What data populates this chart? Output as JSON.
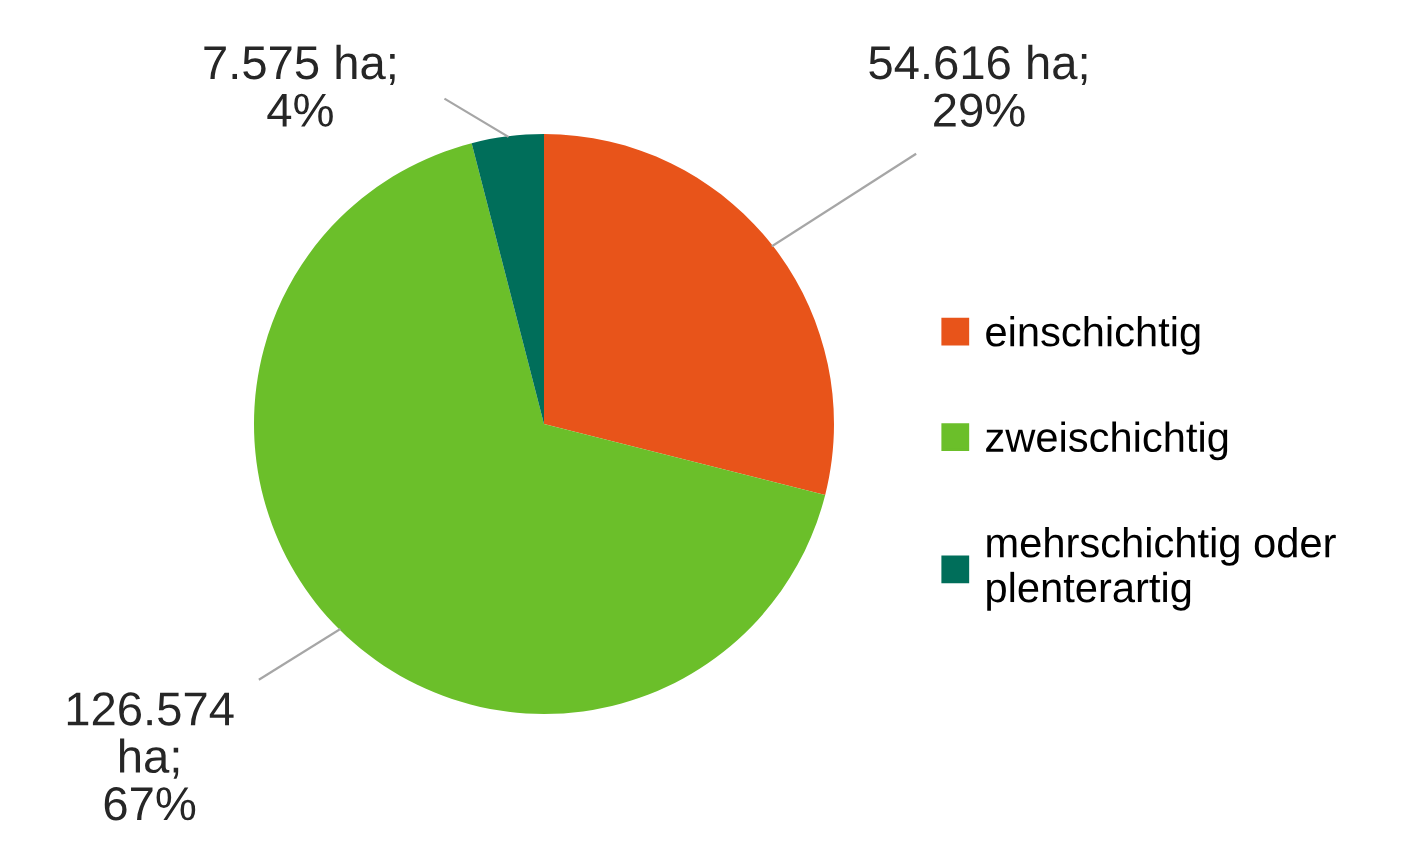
{
  "chart_data": {
    "type": "pie",
    "categories": [
      "einschichtig",
      "zweischichtig",
      "mehrschichtig oder\nplenterartig"
    ],
    "values": [
      54616,
      126574,
      7575
    ],
    "colors": [
      "#e8541a",
      "#6bbf2a",
      "#006e5a"
    ],
    "value_labels": [
      "54.616 ha;\n29%",
      "126.574\nha;\n67%",
      "7.575 ha;\n4%"
    ],
    "legend": "right"
  }
}
